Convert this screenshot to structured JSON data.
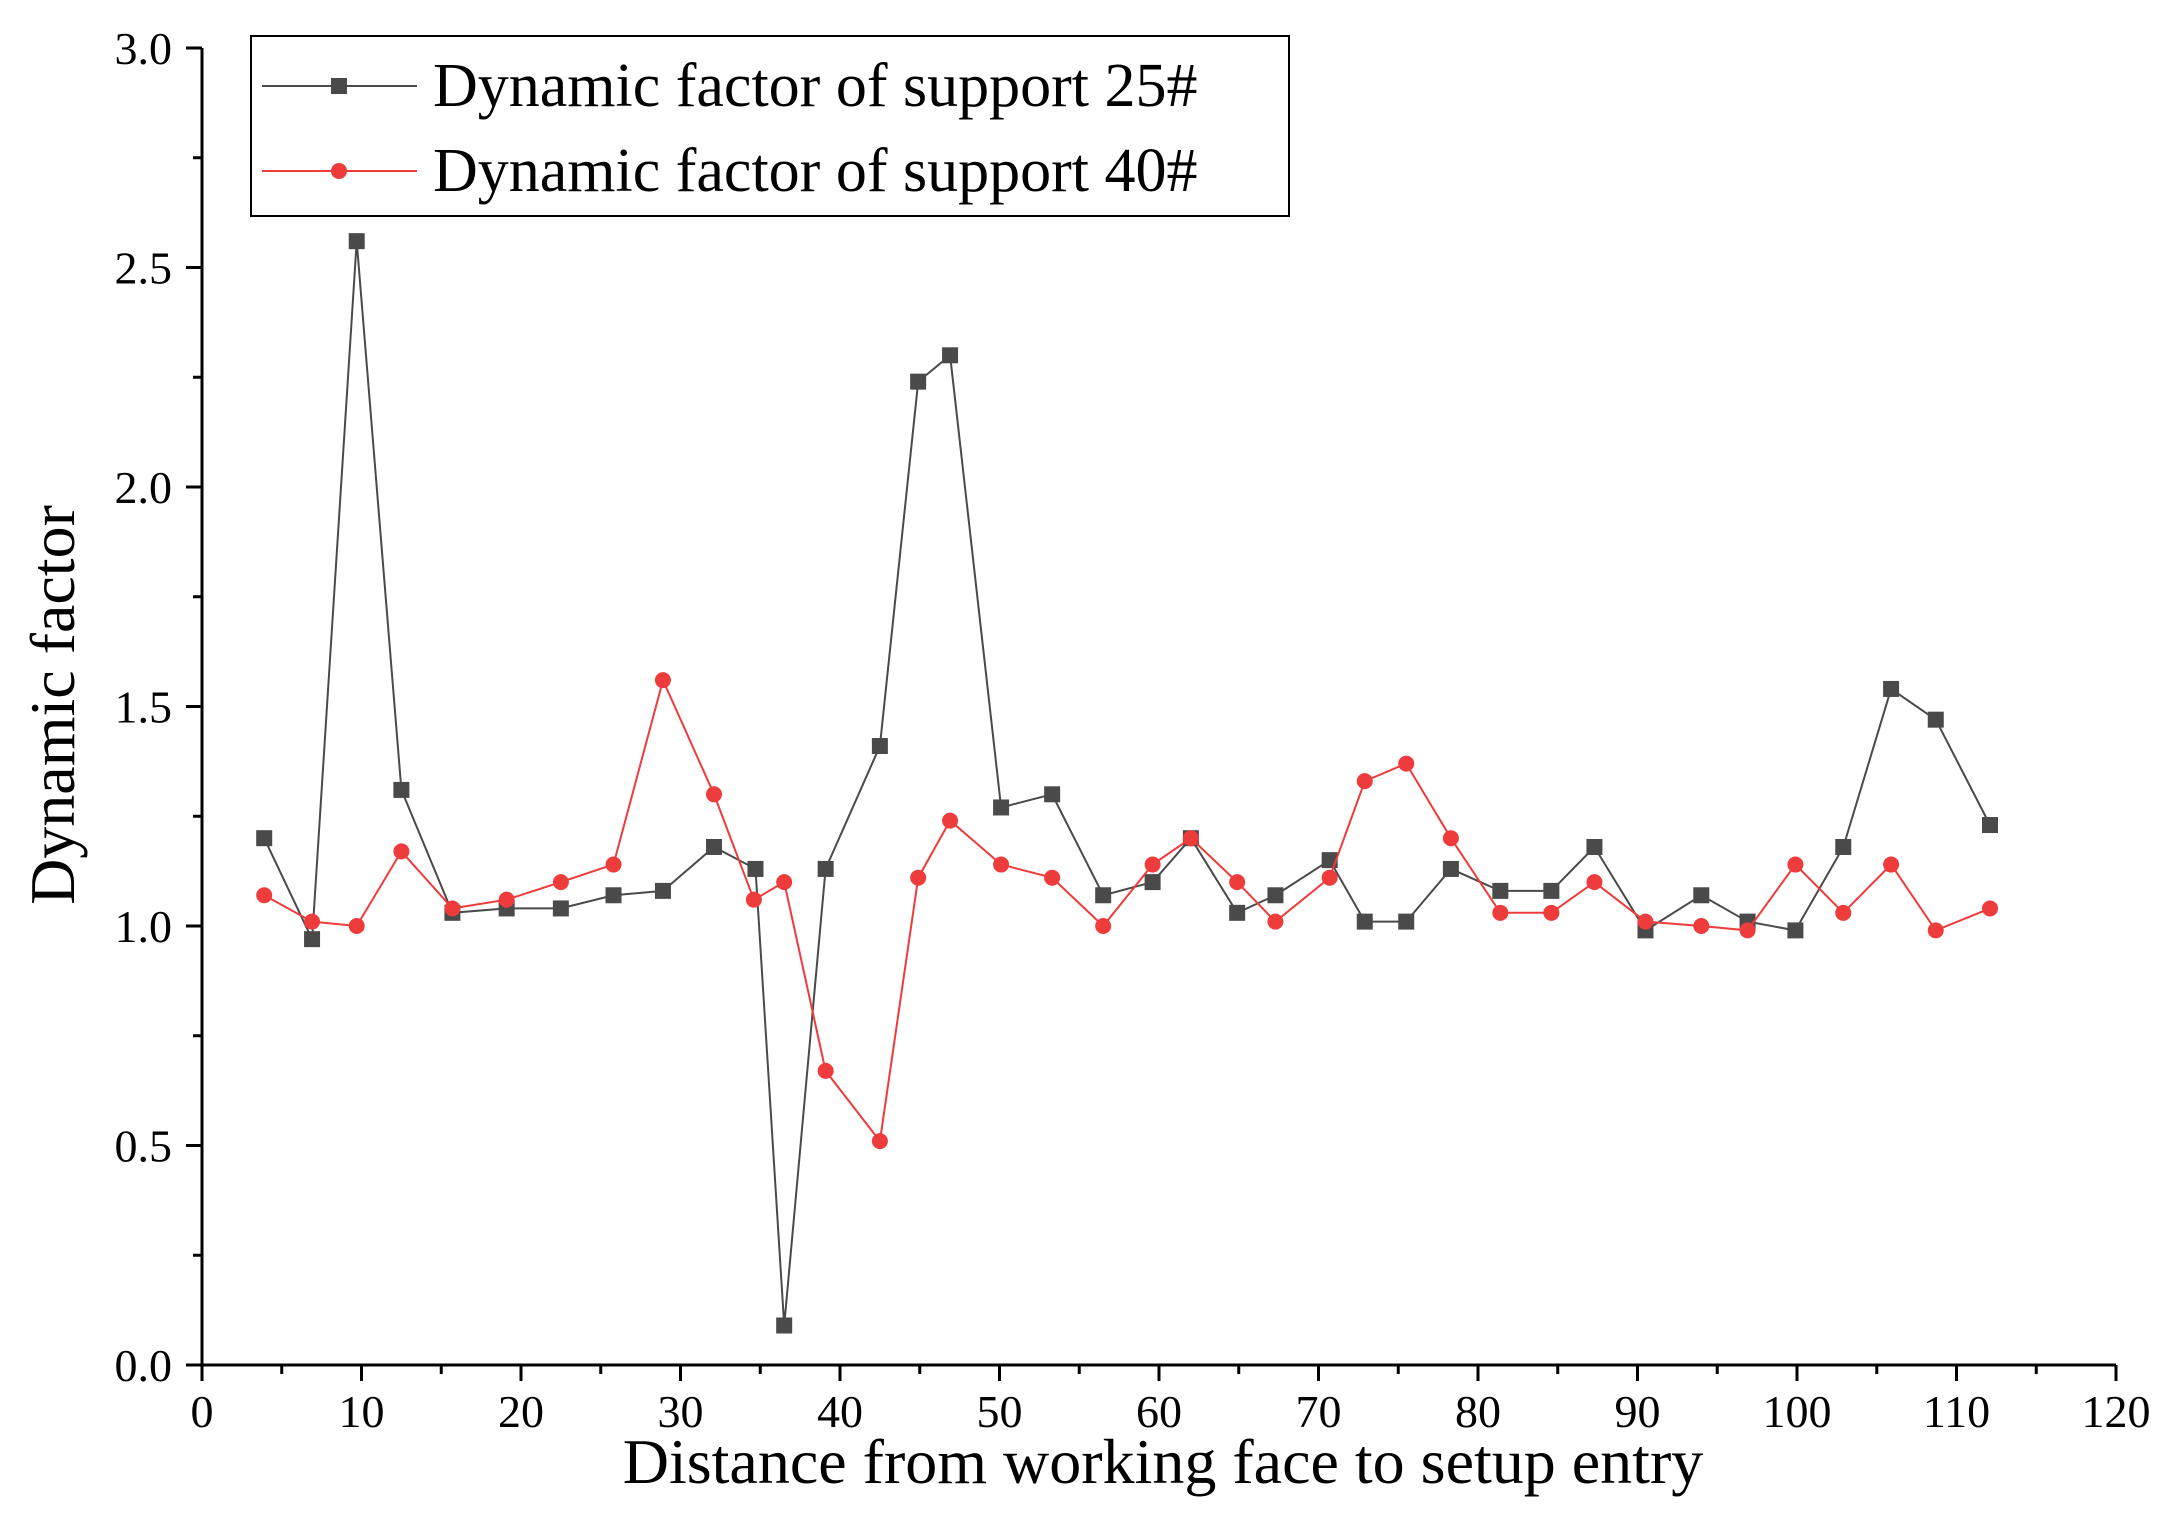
{
  "chart_data": {
    "type": "line",
    "title": "",
    "xlabel": "Distance from working face to setup entry",
    "ylabel": "Dynamic factor",
    "xlim": [
      0,
      120
    ],
    "ylim": [
      0.0,
      3.0
    ],
    "xticks": [
      0,
      10,
      20,
      30,
      40,
      50,
      60,
      70,
      80,
      90,
      100,
      110,
      120
    ],
    "yticks": [
      0.0,
      0.5,
      1.0,
      1.5,
      2.0,
      2.5,
      3.0
    ],
    "xtick_labels": [
      "0",
      "10",
      "20",
      "30",
      "40",
      "50",
      "60",
      "70",
      "80",
      "90",
      "100",
      "110",
      "120"
    ],
    "ytick_labels": [
      "0.0",
      "0.5",
      "1.0",
      "1.5",
      "2.0",
      "2.5",
      "3.0"
    ],
    "grid": false,
    "legend_position": "top-left",
    "series": [
      {
        "name": "Dynamic factor of support 25#",
        "color": "#4a4a4a",
        "marker": "square",
        "x": [
          3.9,
          6.9,
          9.7,
          12.5,
          15.7,
          19.1,
          22.5,
          25.8,
          28.9,
          32.1,
          34.7,
          36.5,
          39.1,
          42.5,
          44.9,
          46.9,
          50.1,
          53.3,
          56.5,
          59.6,
          62.0,
          64.9,
          67.3,
          70.7,
          72.9,
          75.5,
          78.3,
          81.4,
          84.6,
          87.3,
          90.5,
          94.0,
          96.9,
          99.9,
          102.9,
          105.9,
          108.7,
          112.1
        ],
        "values": [
          1.2,
          0.97,
          2.56,
          1.31,
          1.03,
          1.04,
          1.04,
          1.07,
          1.08,
          1.18,
          1.13,
          0.09,
          1.13,
          1.41,
          2.24,
          2.3,
          1.27,
          1.3,
          1.07,
          1.1,
          1.2,
          1.03,
          1.07,
          1.15,
          1.01,
          1.01,
          1.13,
          1.08,
          1.08,
          1.18,
          0.99,
          1.07,
          1.01,
          0.99,
          1.18,
          1.54,
          1.47,
          1.23
        ]
      },
      {
        "name": "Dynamic factor of support 40#",
        "color": "#ee3b3b",
        "marker": "circle",
        "x": [
          3.9,
          6.9,
          9.7,
          12.5,
          15.7,
          19.1,
          22.5,
          25.8,
          28.9,
          32.1,
          34.6,
          36.5,
          39.1,
          42.5,
          44.9,
          46.9,
          50.1,
          53.3,
          56.5,
          59.6,
          62.0,
          64.9,
          67.3,
          70.7,
          72.9,
          75.5,
          78.3,
          81.4,
          84.6,
          87.3,
          90.5,
          94.0,
          96.9,
          99.9,
          102.9,
          105.9,
          108.7,
          112.1
        ],
        "values": [
          1.07,
          1.01,
          1.0,
          1.17,
          1.04,
          1.06,
          1.1,
          1.14,
          1.56,
          1.3,
          1.06,
          1.1,
          0.67,
          0.51,
          1.11,
          1.24,
          1.14,
          1.11,
          1.0,
          1.14,
          1.2,
          1.1,
          1.01,
          1.11,
          1.33,
          1.37,
          1.2,
          1.03,
          1.03,
          1.1,
          1.01,
          1.0,
          0.99,
          1.14,
          1.03,
          1.14,
          0.99,
          1.04
        ]
      }
    ]
  }
}
